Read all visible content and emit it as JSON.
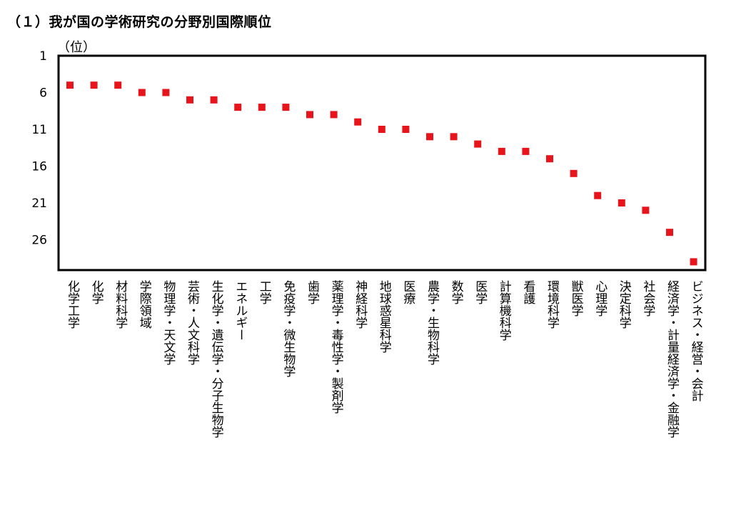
{
  "title": "（１）我が国の学術研究の分野別国際順位",
  "chart_data": {
    "type": "scatter",
    "title": "（１）我が国の学術研究の分野別国際順位",
    "ylabel": "（位）",
    "xlabel": "",
    "y_inverted": true,
    "ylim": [
      1,
      29
    ],
    "yticks": [
      1,
      6,
      11,
      16,
      21,
      26
    ],
    "marker_color": "#e8141c",
    "grid": false,
    "categories": [
      "化学工学",
      "化学",
      "材料科学",
      "学際領域",
      "物理学・天文学",
      "芸術・人文科学",
      "生化学・遺伝学・分子生物学",
      "エネルギー",
      "工学",
      "免疫学・微生物学",
      "歯学",
      "薬理学・毒性学・製剤学",
      "神経科学",
      "地球惑星科学",
      "医療",
      "農学・生物科学",
      "数学",
      "医学",
      "計算機科学",
      "看護",
      "環境科学",
      "獣医学",
      "心理学",
      "決定科学",
      "社会学",
      "経済学・計量経済学・金融学",
      "ビジネス・経営・会計"
    ],
    "values": [
      5,
      5,
      5,
      6,
      6,
      7,
      7,
      8,
      8,
      8,
      9,
      9,
      10,
      11,
      11,
      12,
      12,
      13,
      14,
      14,
      15,
      17,
      20,
      21,
      22,
      25,
      29
    ]
  }
}
